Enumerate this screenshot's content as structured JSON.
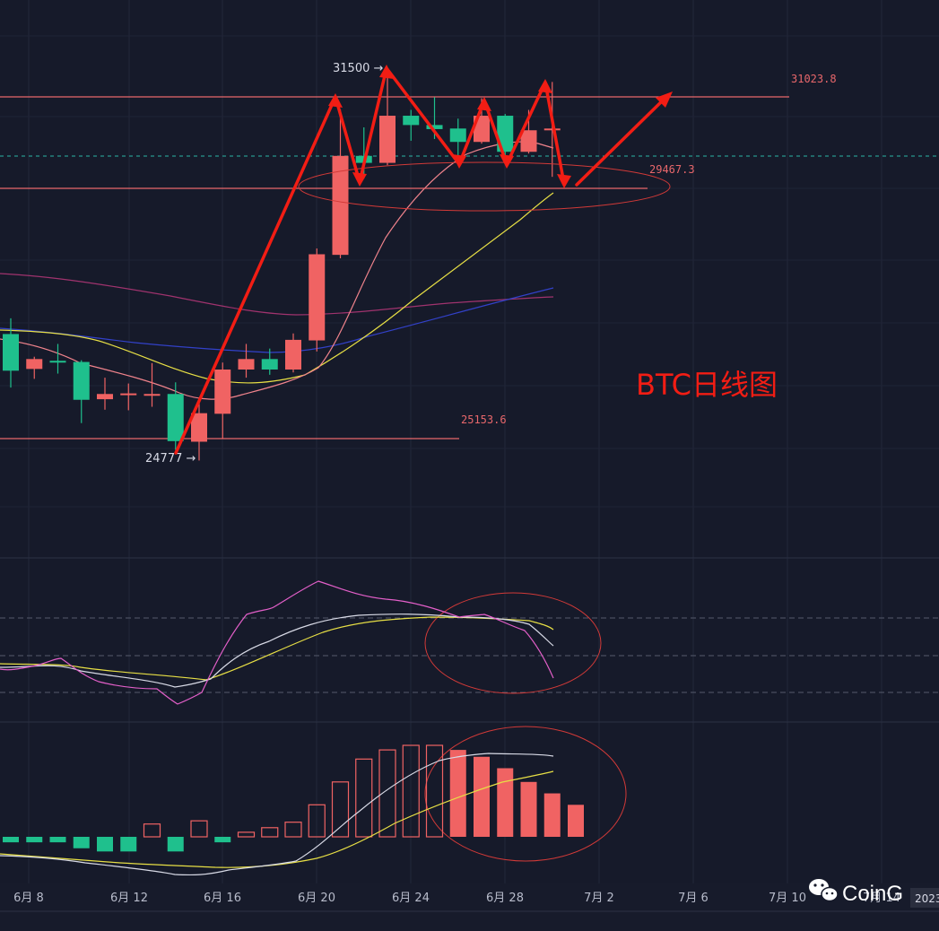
{
  "chart_data": {
    "type": "candlestick",
    "title": "BTC日线图",
    "x_axis": {
      "labels": [
        "6月 8",
        "6月 12",
        "6月 16",
        "6月 20",
        "6月 24",
        "6月 28",
        "7月 2",
        "7月 6",
        "7月 10",
        "7月 14"
      ],
      "year_badge": "2023"
    },
    "annotations": {
      "high_label": "31500 →",
      "low_label": "24777 →",
      "levels": [
        {
          "label": "31023.8",
          "value": 31023.8
        },
        {
          "label": "29467.3",
          "value": 29467.3
        },
        {
          "label": "25153.6",
          "value": 25153.6
        }
      ],
      "current_price": 30450
    },
    "candles": [
      {
        "date": "6月7",
        "open": 26950,
        "close": 26320,
        "high": 27220,
        "low": 26030
      },
      {
        "date": "6月8",
        "open": 26350,
        "close": 26520,
        "high": 26560,
        "low": 26180
      },
      {
        "date": "6月9",
        "open": 26490,
        "close": 26470,
        "high": 26780,
        "low": 26270
      },
      {
        "date": "6月10",
        "open": 26470,
        "close": 25820,
        "high": 26500,
        "low": 25420
      },
      {
        "date": "6月11",
        "open": 25830,
        "close": 25920,
        "high": 26200,
        "low": 25650
      },
      {
        "date": "6月12",
        "open": 25910,
        "close": 25930,
        "high": 26100,
        "low": 25640
      },
      {
        "date": "6月13",
        "open": 25910,
        "close": 25920,
        "high": 26450,
        "low": 25700
      },
      {
        "date": "6月14",
        "open": 25920,
        "close": 25110,
        "high": 26120,
        "low": 24960
      },
      {
        "date": "6월15",
        "open": 25100,
        "close": 25590,
        "high": 25770,
        "low": 24777
      },
      {
        "date": "6月16",
        "open": 25580,
        "close": 26340,
        "high": 26460,
        "low": 25150
      },
      {
        "date": "6月17",
        "open": 26340,
        "close": 26520,
        "high": 26780,
        "low": 26200
      },
      {
        "date": "6月18",
        "open": 26520,
        "close": 26340,
        "high": 26700,
        "low": 26250
      },
      {
        "date": "6月19",
        "open": 26340,
        "close": 26850,
        "high": 26960,
        "low": 26290
      },
      {
        "date": "6月20",
        "open": 26840,
        "close": 28320,
        "high": 28420,
        "low": 26650
      },
      {
        "date": "6月21",
        "open": 28310,
        "close": 30010,
        "high": 30810,
        "low": 28250
      },
      {
        "date": "6月22",
        "open": 30010,
        "close": 29890,
        "high": 30500,
        "low": 29620
      },
      {
        "date": "6月23",
        "open": 29890,
        "close": 30700,
        "high": 31500,
        "low": 29850
      },
      {
        "date": "6月24",
        "open": 30700,
        "close": 30540,
        "high": 30800,
        "low": 30270
      },
      {
        "date": "6月25",
        "open": 30540,
        "close": 30470,
        "high": 31020,
        "low": 30300
      },
      {
        "date": "6月26",
        "open": 30480,
        "close": 30250,
        "high": 30650,
        "low": 29930
      },
      {
        "date": "6月27",
        "open": 30250,
        "close": 30700,
        "high": 31000,
        "low": 30220
      },
      {
        "date": "6月28",
        "open": 30700,
        "close": 30080,
        "high": 30730,
        "low": 29930
      },
      {
        "date": "6月29",
        "open": 30080,
        "close": 30450,
        "high": 30800,
        "low": 30050
      },
      {
        "date": "6月30",
        "open": 30450,
        "close": 30480,
        "high": 31280,
        "low": 29650
      }
    ],
    "colors": {
      "up": "#f06363",
      "down": "#1fc08d",
      "background": "#161a2a",
      "level_line": "#e8676b",
      "arrow": "#f21d14",
      "ellipse": "#d23a38",
      "ma_fast": "#f0838c",
      "ma_mid": "#e7df45",
      "ma_slow": "#3241c8",
      "ma_long": "#a0336e",
      "kdj_k": "#d8dae6",
      "kdj_d": "#e7df45",
      "kdj_j": "#e35fc9",
      "current_price_line": "#2bb7a5"
    }
  },
  "watermark": {
    "brand": "CoinG",
    "icon": "wechat-icon"
  }
}
